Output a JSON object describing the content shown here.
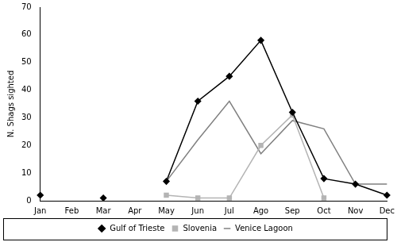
{
  "chart_data": {
    "type": "line",
    "y_label": "N. Shags sighted",
    "categories": [
      "Jan",
      "Feb",
      "Mar",
      "Apr",
      "May",
      "Jun",
      "Jul",
      "Ago",
      "Sep",
      "Oct",
      "Nov",
      "Dec"
    ],
    "series": [
      {
        "name": "Gulf of Trieste",
        "color": "#000000",
        "marker": "diamond",
        "line_style": "solid",
        "values": [
          2,
          null,
          1,
          null,
          7,
          36,
          45,
          58,
          32,
          8,
          6,
          2
        ]
      },
      {
        "name": "Slovenia",
        "color": "#b4b4b4",
        "marker": "square",
        "line_style": "solid",
        "values": [
          null,
          null,
          null,
          null,
          2,
          1,
          1,
          20,
          31,
          1,
          null,
          null
        ]
      },
      {
        "name": "Venice Lagoon",
        "color": "#808080",
        "marker": "none",
        "line_style": "solid",
        "values": [
          null,
          null,
          null,
          null,
          7,
          22,
          36,
          17,
          29,
          26,
          6,
          6
        ]
      }
    ],
    "ylim": [
      0,
      70
    ],
    "yticks": [
      0,
      10,
      20,
      30,
      40,
      50,
      60,
      70
    ],
    "grid": false,
    "legend": "bottom"
  }
}
